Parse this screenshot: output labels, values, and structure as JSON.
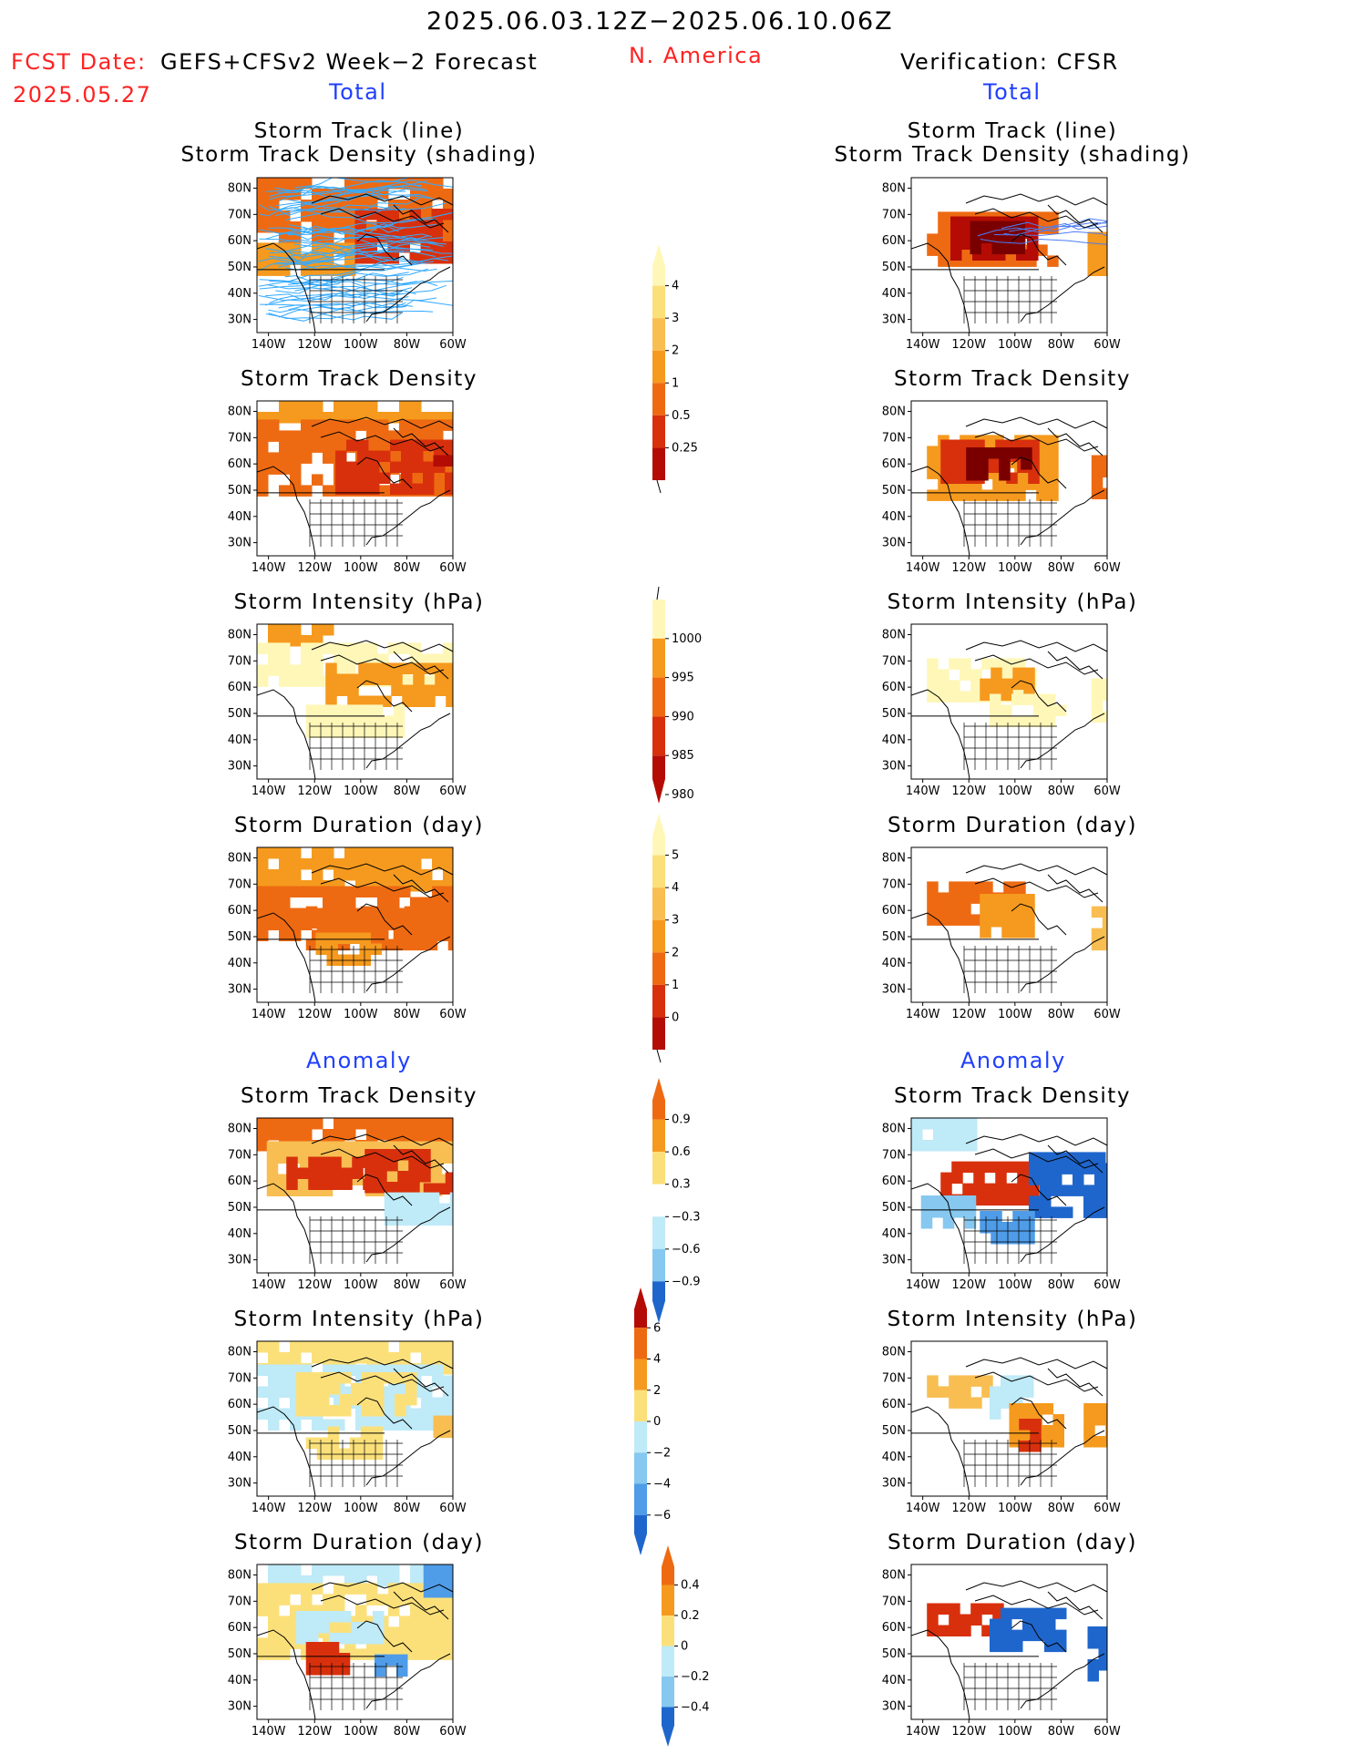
{
  "header": {
    "period": "2025.06.03.12Z−2025.06.10.06Z",
    "fcst_label": "FCST Date:",
    "fcst_model": "GEFS+CFSv2 Week−2 Forecast",
    "fcst_date": "2025.05.27",
    "region": "N. America",
    "verification": "Verification: CFSR",
    "left_section_total": "Total",
    "right_section_total": "Total",
    "left_section_anomaly": "Anomaly",
    "right_section_anomaly": "Anomaly"
  },
  "panel_titles": {
    "track_line": "Storm Track (line)",
    "track_shading": "Storm Track Density (shading)",
    "density": "Storm Track Density",
    "intensity": "Storm Intensity (hPa)",
    "duration": "Storm Duration (day)"
  },
  "axes": {
    "lat_labels": [
      "80N",
      "70N",
      "60N",
      "50N",
      "40N",
      "30N"
    ],
    "lon_labels": [
      "140W",
      "120W",
      "100W",
      "80W",
      "60W"
    ]
  },
  "colorbars": {
    "total_density": [
      "4",
      "3",
      "2",
      "1",
      "0.5",
      "0.25"
    ],
    "total_intensity": [
      "1000",
      "995",
      "990",
      "985",
      "980"
    ],
    "total_duration": [
      "5",
      "4",
      "3",
      "2",
      "1",
      "0"
    ],
    "anom_density": [
      "0.9",
      "0.6",
      "0.3",
      "−0.3",
      "−0.6",
      "−0.9"
    ],
    "anom_intensity": [
      "6",
      "4",
      "2",
      "0",
      "−2",
      "−4",
      "−6"
    ],
    "anom_duration": [
      "0.4",
      "0.2",
      "0",
      "−0.2",
      "−0.4"
    ]
  },
  "colors": {
    "warm": [
      "#fff7b8",
      "#fbe07a",
      "#f8be52",
      "#f59a1e",
      "#ee6a12",
      "#d8300c",
      "#b40c04",
      "#7a0000"
    ],
    "cool": [
      "#bfeaf7",
      "#86c8ef",
      "#4f9ce8",
      "#1f66cc"
    ],
    "track_line": "#33aaff",
    "track_line_obs": "#4b7cf5",
    "red_text": "#ff2222",
    "blue_text": "#1f3fff"
  }
}
